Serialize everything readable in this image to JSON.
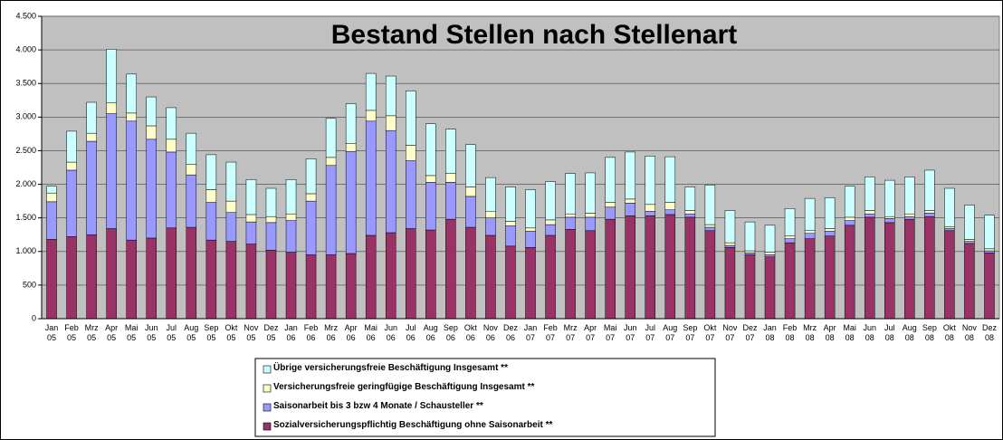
{
  "chart_data": {
    "type": "stacked_bar",
    "title": "Bestand Stellen nach Stellenart",
    "categories": [
      "Jan 05",
      "Feb 05",
      "Mrz 05",
      "Apr 05",
      "Mai 05",
      "Jun 05",
      "Jul 05",
      "Aug 05",
      "Sep 05",
      "Okt 05",
      "Nov 05",
      "Dez 05",
      "Jan 06",
      "Feb 06",
      "Mrz 06",
      "Apr 06",
      "Mai 06",
      "Jun 06",
      "Jul 06",
      "Aug 06",
      "Sep 06",
      "Okt 06",
      "Nov 06",
      "Dez 06",
      "Jan 07",
      "Feb 07",
      "Mrz 07",
      "Apr 07",
      "Mai 07",
      "Jun 07",
      "Jul 07",
      "Aug 07",
      "Sep 07",
      "Okt 07",
      "Nov 07",
      "Dez 07",
      "Jan 08",
      "Feb 08",
      "Mrz 08",
      "Apr 08",
      "Mai 08",
      "Jun 08",
      "Jul 08",
      "Aug 08",
      "Sep 08",
      "Okt 08",
      "Nov 08",
      "Dez 08"
    ],
    "series": [
      {
        "name": "Sozialversicherungspflichtig Beschäftigung ohne Saisonarbeit **",
        "color": "#993366",
        "values": [
          1180,
          1220,
          1250,
          1340,
          1170,
          1200,
          1350,
          1360,
          1170,
          1150,
          1110,
          1020,
          990,
          950,
          950,
          970,
          1240,
          1280,
          1340,
          1320,
          1480,
          1360,
          1240,
          1080,
          1060,
          1240,
          1330,
          1310,
          1480,
          1530,
          1530,
          1550,
          1510,
          1310,
          1060,
          950,
          920,
          1130,
          1190,
          1230,
          1390,
          1510,
          1430,
          1480,
          1520,
          1310,
          1120,
          980
        ]
      },
      {
        "name": "Saisonarbeit bis 3 bzw 4 Monate / Schausteller **",
        "color": "#9999ff",
        "values": [
          560,
          990,
          1390,
          1710,
          1770,
          1470,
          1130,
          780,
          560,
          430,
          330,
          410,
          470,
          800,
          1330,
          1520,
          1700,
          1520,
          1010,
          710,
          550,
          460,
          260,
          300,
          240,
          160,
          180,
          200,
          180,
          190,
          70,
          70,
          50,
          50,
          30,
          30,
          30,
          60,
          80,
          70,
          70,
          50,
          60,
          40,
          50,
          30,
          30,
          30
        ]
      },
      {
        "name": "Versicherungsfreie geringfügige Beschäftigung Insgesamt **",
        "color": "#ffffcc",
        "values": [
          130,
          120,
          120,
          160,
          120,
          200,
          190,
          160,
          190,
          170,
          110,
          90,
          100,
          110,
          120,
          120,
          160,
          220,
          230,
          100,
          130,
          140,
          100,
          70,
          50,
          70,
          50,
          60,
          70,
          60,
          100,
          110,
          50,
          40,
          40,
          30,
          40,
          40,
          40,
          40,
          50,
          50,
          30,
          40,
          40,
          30,
          30,
          30
        ]
      },
      {
        "name": "Übrige versicherungsfreie Beschäftigung Insgesamt **",
        "color": "#ccffff",
        "values": [
          100,
          460,
          460,
          800,
          580,
          430,
          470,
          460,
          520,
          580,
          520,
          420,
          510,
          520,
          580,
          590,
          550,
          590,
          810,
          770,
          660,
          630,
          500,
          510,
          570,
          570,
          600,
          600,
          670,
          700,
          720,
          680,
          350,
          590,
          480,
          430,
          400,
          410,
          480,
          460,
          460,
          500,
          540,
          550,
          600,
          570,
          510,
          500
        ]
      }
    ],
    "ylim": [
      0,
      4500
    ],
    "yticks": [
      0,
      500,
      {
        "value": 1000,
        "label": "1.000"
      },
      {
        "value": 1500,
        "label": "1.500"
      },
      {
        "value": 2000,
        "label": "2.000"
      },
      {
        "value": 2500,
        "label": "2.500"
      },
      {
        "value": 3000,
        "label": "3.000"
      },
      {
        "value": 3500,
        "label": "3.500"
      },
      {
        "value": 4000,
        "label": "4.000"
      },
      {
        "value": 4500,
        "label": "4.500"
      }
    ],
    "grid": true,
    "legend": "bottom"
  }
}
